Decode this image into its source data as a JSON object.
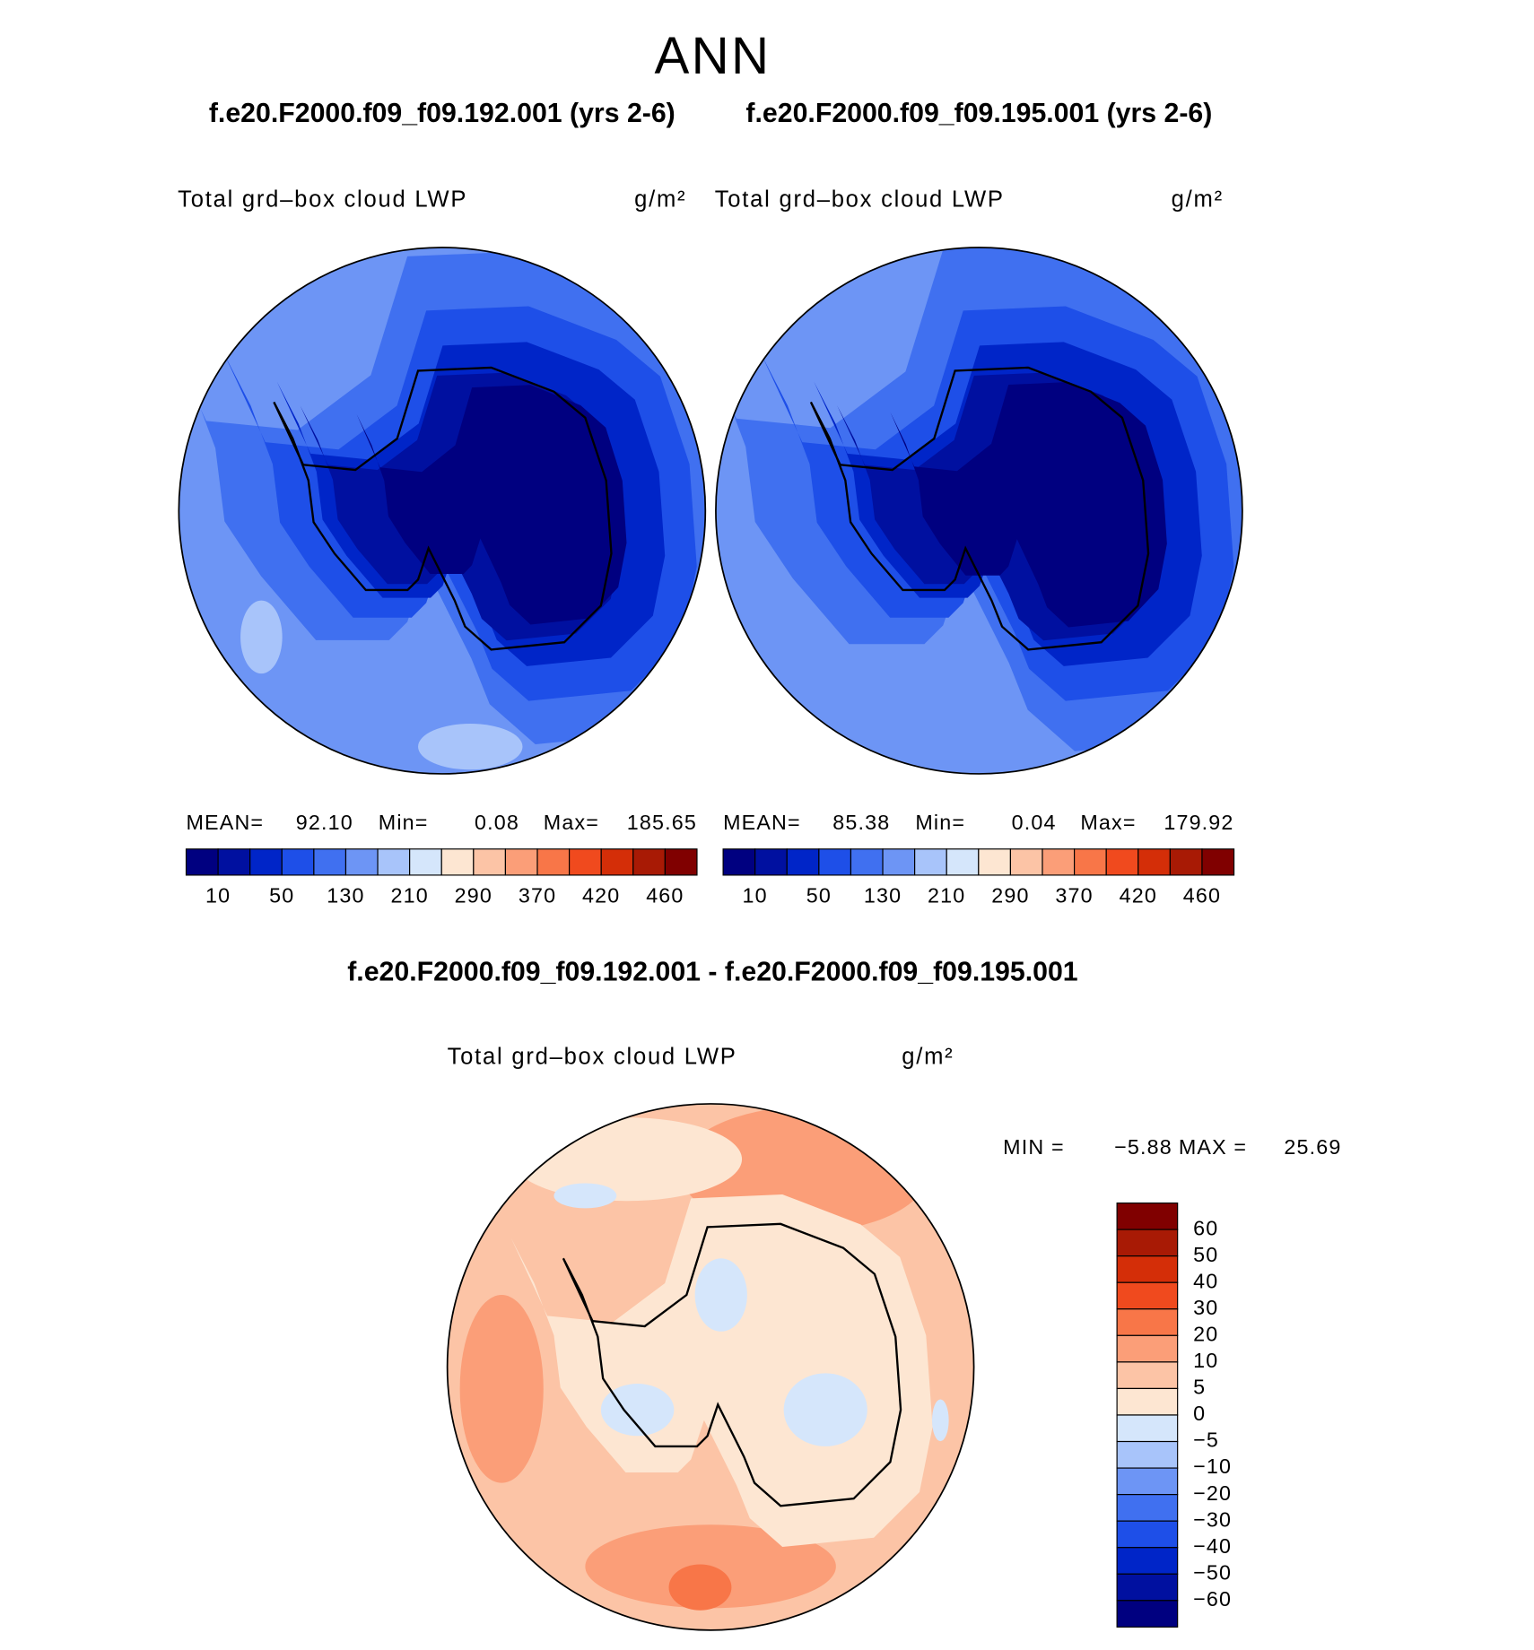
{
  "title": "ANN",
  "panels": [
    {
      "case_title": "f.e20.F2000.f09_f09.192.001 (yrs 2-6)",
      "field": "Total grd–box cloud LWP",
      "units": "g/m²",
      "stats": [
        {
          "label": "MEAN=",
          "value": "92.10"
        },
        {
          "label": "Min=",
          "value": "0.08"
        },
        {
          "label": "Max=",
          "value": "185.65"
        }
      ]
    },
    {
      "case_title": "f.e20.F2000.f09_f09.195.001 (yrs 2-6)",
      "field": "Total grd–box cloud LWP",
      "units": "g/m²",
      "stats": [
        {
          "label": "MEAN=",
          "value": "85.38"
        },
        {
          "label": "Min=",
          "value": "0.04"
        },
        {
          "label": "Max=",
          "value": "179.92"
        }
      ]
    }
  ],
  "colorbar": {
    "colors": [
      "#000080",
      "#0010a0",
      "#0025c8",
      "#1e4fe8",
      "#4070f0",
      "#6d95f5",
      "#a8c4fa",
      "#d5e6fb",
      "#fde6d2",
      "#fcc4a6",
      "#fb9e78",
      "#f87648",
      "#f04a1e",
      "#d42e08",
      "#a81a05",
      "#800000"
    ],
    "labels": [
      10,
      50,
      130,
      210,
      290,
      370,
      420,
      460
    ]
  },
  "difference": {
    "title": "f.e20.F2000.f09_f09.192.001 - f.e20.F2000.f09_f09.195.001",
    "field": "Total grd–box cloud LWP",
    "units": "g/m²",
    "stats": [
      {
        "label": "MIN =",
        "value": "−5.88"
      },
      {
        "label": "MAX =",
        "value": "25.69"
      }
    ],
    "colorbar": {
      "colors": [
        "#800000",
        "#a81a05",
        "#d42e08",
        "#f04a1e",
        "#f87648",
        "#fb9e78",
        "#fcc4a6",
        "#fde6d2",
        "#d5e6fb",
        "#a8c4fa",
        "#6d95f5",
        "#4070f0",
        "#1e4fe8",
        "#0025c8",
        "#0010a0",
        "#000080"
      ],
      "labels": [
        60,
        50,
        40,
        30,
        20,
        10,
        5,
        0,
        {
          "value": -5,
          "label": "−5"
        },
        {
          "value": -10,
          "label": "−10"
        },
        {
          "value": -20,
          "label": "−20"
        },
        {
          "value": -30,
          "label": "−30"
        },
        {
          "value": -40,
          "label": "−40"
        },
        {
          "value": -50,
          "label": "−50"
        },
        {
          "value": -60,
          "label": "−60"
        }
      ]
    }
  }
}
